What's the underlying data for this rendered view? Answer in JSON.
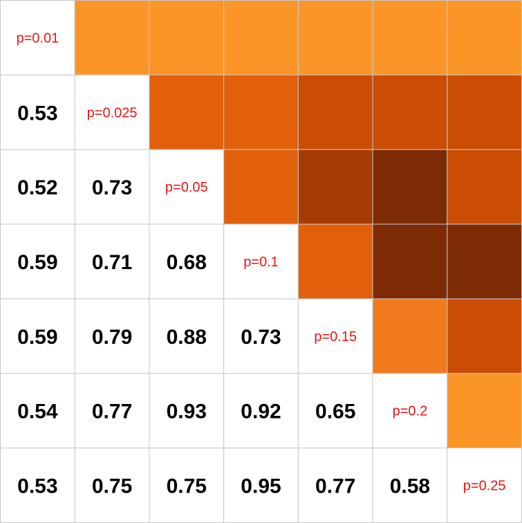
{
  "chart_data": {
    "type": "heatmap",
    "title": "",
    "xlabel": "",
    "ylabel": "",
    "size": 7,
    "diagonal_labels": [
      "p=0.01",
      "p=0.025",
      "p=0.05",
      "p=0.1",
      "p=0.15",
      "p=0.2",
      "p=0.25"
    ],
    "lower_values": [
      [],
      [
        0.53
      ],
      [
        0.52,
        0.73
      ],
      [
        0.59,
        0.71,
        0.68
      ],
      [
        0.59,
        0.79,
        0.88,
        0.73
      ],
      [
        0.54,
        0.77,
        0.93,
        0.92,
        0.65
      ],
      [
        0.53,
        0.75,
        0.75,
        0.95,
        0.77,
        0.58
      ]
    ],
    "lower_labels": [
      [],
      [
        "0.53"
      ],
      [
        "0.52",
        "0.73"
      ],
      [
        "0.59",
        "0.71",
        "0.68"
      ],
      [
        "0.59",
        "0.79",
        "0.88",
        "0.73"
      ],
      [
        "0.54",
        "0.77",
        "0.93",
        "0.92",
        "0.65"
      ],
      [
        "0.53",
        "0.75",
        "0.75",
        "0.95",
        "0.77",
        "0.58"
      ]
    ],
    "colors": {
      "diagonal_text": "#ee1111",
      "value_text": "#000000",
      "gridline": "#c8c8c8",
      "background": "#ffffff",
      "color_scale": [
        "#fb9528",
        "#f07a1c",
        "#e25f0b",
        "#cb4c04",
        "#a73b04",
        "#7c2b05"
      ]
    }
  }
}
